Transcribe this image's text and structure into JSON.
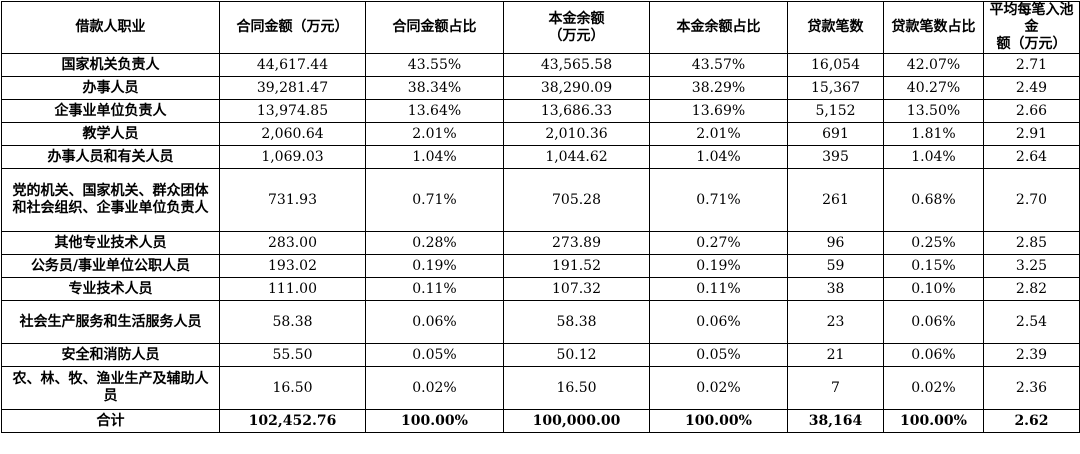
{
  "headers": [
    "借款人职业",
    "合同金额（万元）",
    "合同金额占比",
    "本金余额\n（万元）",
    "本金余额占比",
    "贷款笔数",
    "贷款笔数占比",
    "平均每笔入池金\n额（万元）"
  ],
  "rows": [
    {
      "occupation": "国家机关负责人",
      "contract": "44,617.44",
      "contract_pct": "43.55%",
      "balance": "43,565.58",
      "balance_pct": "43.57%",
      "count": "16,054",
      "count_pct": "42.07%",
      "avg": "2.71"
    },
    {
      "occupation": "办事人员",
      "contract": "39,281.47",
      "contract_pct": "38.34%",
      "balance": "38,290.09",
      "balance_pct": "38.29%",
      "count": "15,367",
      "count_pct": "40.27%",
      "avg": "2.49"
    },
    {
      "occupation": "企事业单位负责人",
      "contract": "13,974.85",
      "contract_pct": "13.64%",
      "balance": "13,686.33",
      "balance_pct": "13.69%",
      "count": "5,152",
      "count_pct": "13.50%",
      "avg": "2.66"
    },
    {
      "occupation": "教学人员",
      "contract": "2,060.64",
      "contract_pct": "2.01%",
      "balance": "2,010.36",
      "balance_pct": "2.01%",
      "count": "691",
      "count_pct": "1.81%",
      "avg": "2.91"
    },
    {
      "occupation": "办事人员和有关人员",
      "contract": "1,069.03",
      "contract_pct": "1.04%",
      "balance": "1,044.62",
      "balance_pct": "1.04%",
      "count": "395",
      "count_pct": "1.04%",
      "avg": "2.64"
    },
    {
      "occupation": "党的机关、国家机关、群众团体和社会组织、企事业单位负责人",
      "contract": "731.93",
      "contract_pct": "0.71%",
      "balance": "705.28",
      "balance_pct": "0.71%",
      "count": "261",
      "count_pct": "0.68%",
      "avg": "2.70"
    },
    {
      "occupation": "其他专业技术人员",
      "contract": "283.00",
      "contract_pct": "0.28%",
      "balance": "273.89",
      "balance_pct": "0.27%",
      "count": "96",
      "count_pct": "0.25%",
      "avg": "2.85"
    },
    {
      "occupation": "公务员/事业单位公职人员",
      "contract": "193.02",
      "contract_pct": "0.19%",
      "balance": "191.52",
      "balance_pct": "0.19%",
      "count": "59",
      "count_pct": "0.15%",
      "avg": "3.25"
    },
    {
      "occupation": "专业技术人员",
      "contract": "111.00",
      "contract_pct": "0.11%",
      "balance": "107.32",
      "balance_pct": "0.11%",
      "count": "38",
      "count_pct": "0.10%",
      "avg": "2.82"
    },
    {
      "occupation": "社会生产服务和生活服务人员",
      "contract": "58.38",
      "contract_pct": "0.06%",
      "balance": "58.38",
      "balance_pct": "0.06%",
      "count": "23",
      "count_pct": "0.06%",
      "avg": "2.54"
    },
    {
      "occupation": "安全和消防人员",
      "contract": "55.50",
      "contract_pct": "0.05%",
      "balance": "50.12",
      "balance_pct": "0.05%",
      "count": "21",
      "count_pct": "0.06%",
      "avg": "2.39"
    },
    {
      "occupation": "农、林、牧、渔业生产及辅助人员",
      "contract": "16.50",
      "contract_pct": "0.02%",
      "balance": "16.50",
      "balance_pct": "0.02%",
      "count": "7",
      "count_pct": "0.02%",
      "avg": "2.36"
    }
  ],
  "total": {
    "occupation": "合计",
    "contract": "102,452.76",
    "contract_pct": "100.00%",
    "balance": "100,000.00",
    "balance_pct": "100.00%",
    "count": "38,164",
    "count_pct": "100.00%",
    "avg": "2.62"
  }
}
